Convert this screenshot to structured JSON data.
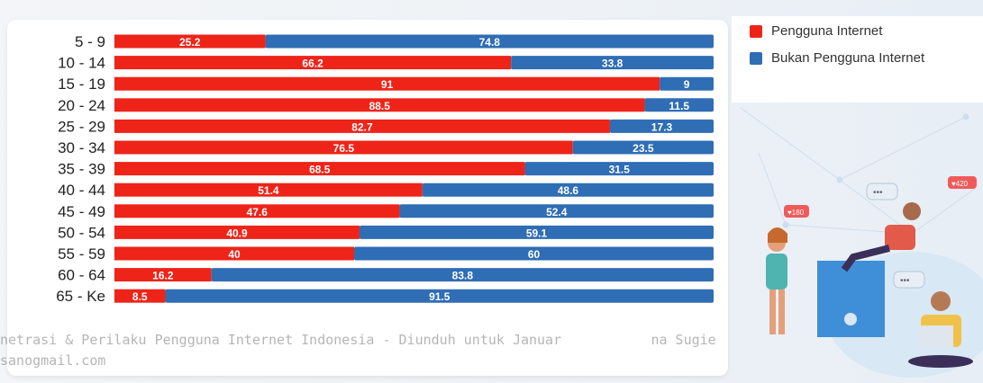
{
  "chart_data": {
    "type": "bar",
    "orientation": "horizontal",
    "stacked": true,
    "categories": [
      "5 - 9",
      "10 - 14",
      "15 - 19",
      "20 - 24",
      "25 - 29",
      "30 - 34",
      "35 - 39",
      "40 - 44",
      "45 - 49",
      "50 - 54",
      "55 - 59",
      "60 - 64",
      "65 - Ke"
    ],
    "series": [
      {
        "name": "Pengguna Internet",
        "color": "#ee2419",
        "values": [
          25.2,
          66.2,
          91,
          88.5,
          82.7,
          76.5,
          68.5,
          51.4,
          47.6,
          40.9,
          40,
          16.2,
          8.5
        ]
      },
      {
        "name": "Bukan Pengguna Internet",
        "color": "#2f6db5",
        "values": [
          74.8,
          33.8,
          9,
          11.5,
          17.3,
          23.5,
          31.5,
          48.6,
          52.4,
          59.1,
          60,
          83.8,
          91.5
        ]
      }
    ],
    "xlim": [
      0,
      100
    ],
    "legend_position": "top-right",
    "grid": false
  },
  "watermark": {
    "line1": "netrasi & Perilaku Pengguna Internet Indonesia - Diunduh untuk Januar           na Sugie",
    "line2": "sanogmail.com"
  }
}
